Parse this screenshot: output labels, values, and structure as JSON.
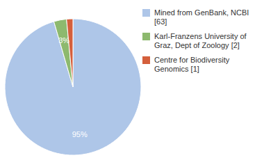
{
  "chart_data": {
    "type": "pie",
    "categories": [
      "Mined from GenBank, NCBI [63]",
      "Karl-Franzens University of\nGraz, Dept of Zoology [2]",
      "Centre for Biodiversity\nGenomics [1]"
    ],
    "values": [
      95,
      3,
      1.5
    ],
    "value_labels": [
      "95%",
      "3%",
      null
    ],
    "colors": [
      "#aec6e8",
      "#8db96e",
      "#d45f3c"
    ],
    "data_labels": true,
    "legend": "right"
  }
}
